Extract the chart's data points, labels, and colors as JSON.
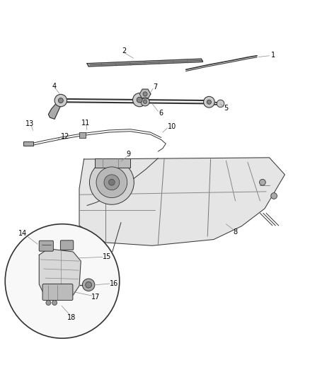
{
  "background_color": "#ffffff",
  "line_color": "#555555",
  "dark_color": "#333333",
  "gray_color": "#888888",
  "light_gray": "#cccccc",
  "figsize": [
    4.38,
    5.33
  ],
  "dpi": 100
}
